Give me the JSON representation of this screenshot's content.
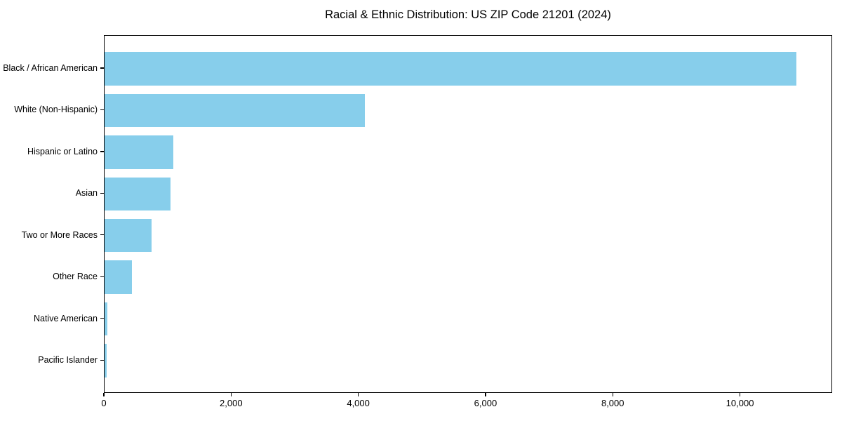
{
  "chart_data": {
    "type": "bar",
    "orientation": "horizontal",
    "title": "Racial & Ethnic Distribution: US ZIP Code 21201 (2024)",
    "categories": [
      "Black / African American",
      "White (Non-Hispanic)",
      "Hispanic or Latino",
      "Asian",
      "Two or More Races",
      "Other Race",
      "Native American",
      "Pacific Islander"
    ],
    "values": [
      10900,
      4100,
      1080,
      1040,
      740,
      430,
      40,
      30
    ],
    "xlabel": "",
    "ylabel": "",
    "xlim": [
      0,
      11450
    ],
    "xticks": [
      0,
      2000,
      4000,
      6000,
      8000,
      10000
    ],
    "xtick_labels": [
      "0",
      "2,000",
      "4,000",
      "6,000",
      "8,000",
      "10,000"
    ],
    "bar_color": "#87CEEB",
    "background_color": "#ffffff",
    "text_color": "#000000",
    "grid": false,
    "legend": "none",
    "bar_height_fraction": 0.8
  }
}
